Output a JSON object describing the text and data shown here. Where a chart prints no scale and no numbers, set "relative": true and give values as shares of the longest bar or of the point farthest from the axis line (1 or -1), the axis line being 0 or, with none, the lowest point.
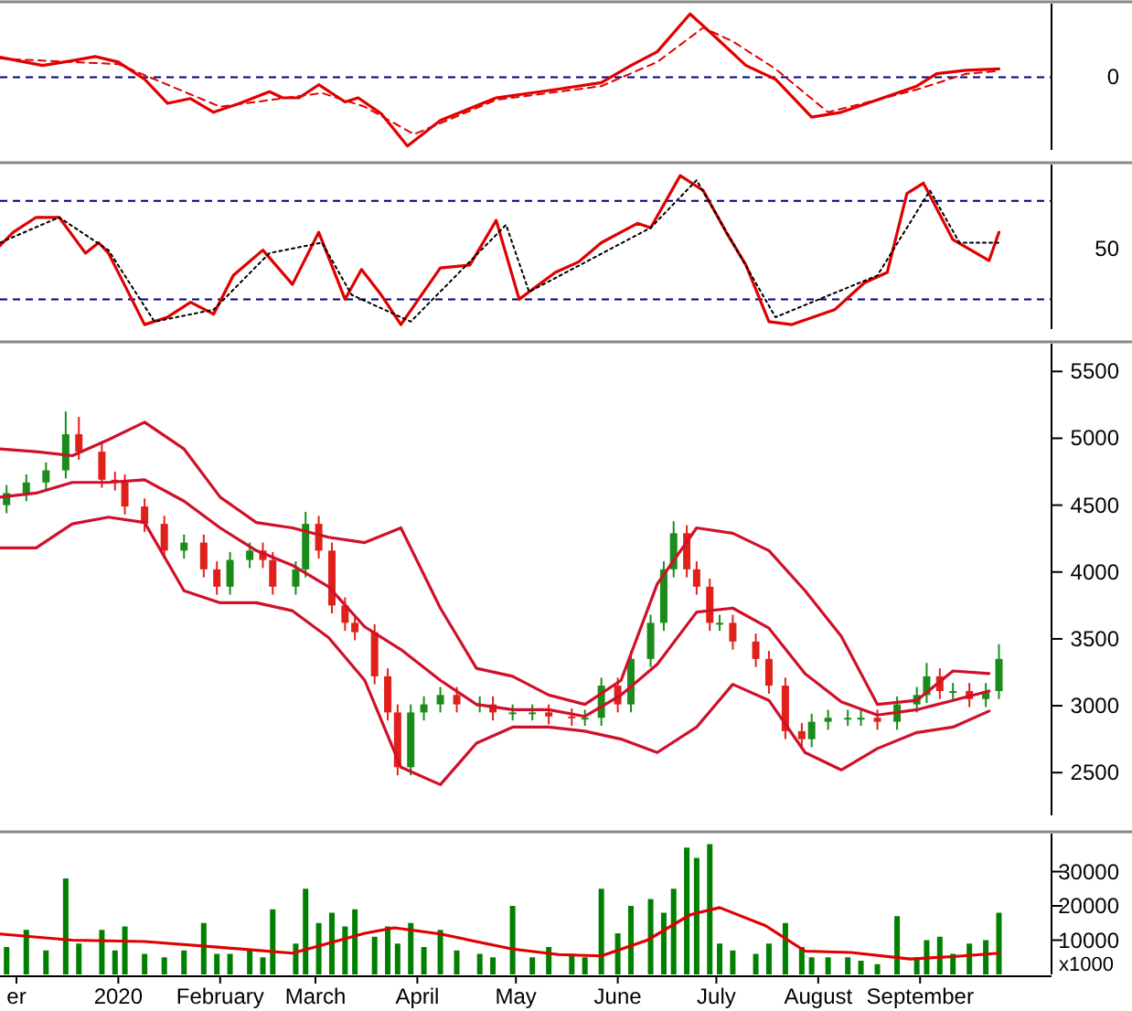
{
  "chart_data": [
    {
      "type": "line",
      "relative": true,
      "tick_labels": false,
      "xlim": [
        "2019-11-26",
        "2020-10-11"
      ],
      "ref_lines": [
        {
          "axis": "y",
          "value": 0,
          "label": "0",
          "color": "#000080",
          "line_style": "dashed"
        }
      ],
      "series": [
        {
          "color": "#e00000",
          "line_style": "solid",
          "x": [
            "2019-11-26",
            "2019-12-09",
            "2019-12-18",
            "2019-12-25",
            "2020-01-01",
            "2020-01-09",
            "2020-01-16",
            "2020-01-23",
            "2020-01-30",
            "2020-02-07",
            "2020-02-16",
            "2020-02-20",
            "2020-02-25",
            "2020-03-02",
            "2020-03-10",
            "2020-03-14",
            "2020-03-21",
            "2020-03-29",
            "2020-04-08",
            "2020-04-25",
            "2020-05-13",
            "2020-05-27",
            "2020-06-05",
            "2020-06-13",
            "2020-06-23",
            "2020-07-01",
            "2020-07-10",
            "2020-07-19",
            "2020-07-30",
            "2020-08-08",
            "2020-08-19",
            "2020-08-31",
            "2020-09-06",
            "2020-09-15",
            "2020-09-25"
          ],
          "values": [
            0.29,
            0.17,
            0.24,
            0.3,
            0.22,
            -0.03,
            -0.38,
            -0.31,
            -0.51,
            -0.38,
            -0.21,
            -0.3,
            -0.3,
            -0.11,
            -0.36,
            -0.3,
            -0.53,
            -1,
            -0.63,
            -0.3,
            -0.18,
            -0.08,
            0.17,
            0.37,
            0.92,
            0.57,
            0.17,
            -0.03,
            -0.58,
            -0.51,
            -0.33,
            -0.13,
            0.05,
            0.1,
            0.12
          ]
        },
        {
          "color": "#e00000",
          "line_style": "dashed",
          "x": [
            "2019-11-26",
            "2020-01-01",
            "2020-02-01",
            "2020-03-03",
            "2020-03-16",
            "2020-03-31",
            "2020-04-25",
            "2020-05-27",
            "2020-06-13",
            "2020-06-27",
            "2020-07-06",
            "2020-07-19",
            "2020-08-04",
            "2020-08-31",
            "2020-09-15",
            "2020-09-25"
          ],
          "values": [
            0.27,
            0.19,
            -0.43,
            -0.23,
            -0.43,
            -0.83,
            -0.33,
            -0.13,
            0.22,
            0.72,
            0.52,
            0.12,
            -0.51,
            -0.18,
            0.05,
            0.09
          ]
        }
      ]
    },
    {
      "type": "line",
      "relative": true,
      "tick_labels": false,
      "xlim": [
        "2019-11-26",
        "2020-10-11"
      ],
      "annotations": [
        "50"
      ],
      "ref_lines": [
        {
          "axis": "y",
          "value": 0.83,
          "label": null,
          "color": "#000080",
          "line_style": "dashed"
        },
        {
          "axis": "y",
          "value": 0.17,
          "label": null,
          "color": "#000080",
          "line_style": "dashed"
        }
      ],
      "series": [
        {
          "color": "#e00000",
          "line_style": "solid",
          "x": [
            "2019-11-26",
            "2019-11-30",
            "2019-12-07",
            "2019-12-14",
            "2019-12-22",
            "2019-12-26",
            "2019-12-29",
            "2020-01-09",
            "2020-01-16",
            "2020-01-23",
            "2020-01-30",
            "2020-02-05",
            "2020-02-14",
            "2020-02-23",
            "2020-03-02",
            "2020-03-10",
            "2020-03-15",
            "2020-03-21",
            "2020-03-27",
            "2020-04-08",
            "2020-04-17",
            "2020-04-25",
            "2020-05-02",
            "2020-05-13",
            "2020-05-20",
            "2020-05-27",
            "2020-06-07",
            "2020-06-11",
            "2020-06-20",
            "2020-06-27",
            "2020-07-04",
            "2020-07-10",
            "2020-07-17",
            "2020-07-24",
            "2020-08-06",
            "2020-08-15",
            "2020-08-22",
            "2020-08-28",
            "2020-09-02",
            "2020-09-11",
            "2020-09-22",
            "2020-09-25"
          ],
          "values": [
            0.53,
            0.62,
            0.72,
            0.72,
            0.48,
            0.55,
            0.48,
            0,
            0.05,
            0.15,
            0.07,
            0.33,
            0.5,
            0.27,
            0.62,
            0.17,
            0.37,
            0.2,
            0,
            0.38,
            0.4,
            0.7,
            0.17,
            0.35,
            0.42,
            0.55,
            0.68,
            0.65,
            1,
            0.9,
            0.62,
            0.4,
            0.02,
            0,
            0.1,
            0.28,
            0.35,
            0.88,
            0.95,
            0.57,
            0.43,
            0.62
          ]
        },
        {
          "color": "#000000",
          "line_style": "dotted",
          "x": [
            "2019-11-26",
            "2019-12-14",
            "2019-12-29",
            "2020-01-12",
            "2020-01-30",
            "2020-02-16",
            "2020-03-03",
            "2020-03-12",
            "2020-03-30",
            "2020-04-28",
            "2020-05-05",
            "2020-06-11",
            "2020-06-25",
            "2020-07-19",
            "2020-08-19",
            "2020-09-04",
            "2020-09-13",
            "2020-09-25"
          ],
          "values": [
            0.55,
            0.72,
            0.5,
            0.02,
            0.1,
            0.48,
            0.55,
            0.2,
            0.02,
            0.67,
            0.22,
            0.65,
            0.97,
            0.05,
            0.33,
            0.9,
            0.55,
            0.55
          ]
        }
      ]
    },
    {
      "type": "candlestick",
      "tick_labels": "y",
      "xlim": [
        "2019-11-26",
        "2020-10-11"
      ],
      "ylim": [
        2180,
        5680
      ],
      "yticks": [
        2500,
        3000,
        3500,
        4000,
        4500,
        5000,
        5500
      ],
      "series": [
        {
          "x": [
            "2019-11-28",
            "2019-12-04",
            "2019-12-10",
            "2019-12-16",
            "2019-12-20",
            "2019-12-27",
            "2019-12-31",
            "2020-01-03",
            "2020-01-09",
            "2020-01-15",
            "2020-01-21",
            "2020-01-27",
            "2020-01-31",
            "2020-02-04",
            "2020-02-10",
            "2020-02-14",
            "2020-02-17",
            "2020-02-24",
            "2020-02-27",
            "2020-03-02",
            "2020-03-06",
            "2020-03-10",
            "2020-03-13",
            "2020-03-19",
            "2020-03-23",
            "2020-03-26",
            "2020-03-30",
            "2020-04-03",
            "2020-04-08",
            "2020-04-13",
            "2020-04-20",
            "2020-04-24",
            "2020-04-30",
            "2020-05-06",
            "2020-05-11",
            "2020-05-18",
            "2020-05-22",
            "2020-05-27",
            "2020-06-01",
            "2020-06-05",
            "2020-06-11",
            "2020-06-15",
            "2020-06-18",
            "2020-06-22",
            "2020-06-25",
            "2020-06-29",
            "2020-07-02",
            "2020-07-06",
            "2020-07-13",
            "2020-07-17",
            "2020-07-22",
            "2020-07-27",
            "2020-07-30",
            "2020-08-04",
            "2020-08-10",
            "2020-08-14",
            "2020-08-19",
            "2020-08-25",
            "2020-08-31",
            "2020-09-03",
            "2020-09-07",
            "2020-09-11",
            "2020-09-16",
            "2020-09-21",
            "2020-09-25"
          ],
          "ohlc": [
            [
              4500,
              4650,
              4440,
              4590
            ],
            [
              4590,
              4730,
              4530,
              4670
            ],
            [
              4670,
              4820,
              4610,
              4760
            ],
            [
              4760,
              5200,
              4700,
              5030
            ],
            [
              5030,
              5160,
              4840,
              4900
            ],
            [
              4900,
              4960,
              4630,
              4690
            ],
            [
              4690,
              4750,
              4610,
              4670
            ],
            [
              4670,
              4730,
              4430,
              4490
            ],
            [
              4490,
              4550,
              4300,
              4360
            ],
            [
              4360,
              4420,
              4100,
              4160
            ],
            [
              4160,
              4280,
              4100,
              4220
            ],
            [
              4220,
              4280,
              3960,
              4020
            ],
            [
              4020,
              4080,
              3830,
              3890
            ],
            [
              3890,
              4150,
              3830,
              4090
            ],
            [
              4090,
              4220,
              4030,
              4160
            ],
            [
              4160,
              4220,
              4030,
              4090
            ],
            [
              4090,
              4150,
              3830,
              3890
            ],
            [
              3890,
              4080,
              3830,
              4020
            ],
            [
              4020,
              4450,
              3960,
              4360
            ],
            [
              4360,
              4420,
              4100,
              4160
            ],
            [
              4160,
              4220,
              3690,
              3750
            ],
            [
              3750,
              3810,
              3560,
              3620
            ],
            [
              3620,
              3680,
              3490,
              3550
            ],
            [
              3550,
              3610,
              3160,
              3220
            ],
            [
              3220,
              3280,
              2890,
              2950
            ],
            [
              2950,
              3010,
              2480,
              2540
            ],
            [
              2540,
              3010,
              2480,
              2950
            ],
            [
              2950,
              3070,
              2890,
              3010
            ],
            [
              3010,
              3140,
              2950,
              3080
            ],
            [
              3080,
              3140,
              2950,
              3010
            ],
            [
              3010,
              3070,
              2950,
              3010
            ],
            [
              3010,
              3070,
              2890,
              2950
            ],
            [
              2950,
              3010,
              2890,
              2950
            ],
            [
              2950,
              3010,
              2890,
              2950
            ],
            [
              2950,
              3010,
              2860,
              2920
            ],
            [
              2920,
              2980,
              2850,
              2910
            ],
            [
              2910,
              2970,
              2850,
              2910
            ],
            [
              2910,
              3210,
              2850,
              3150
            ],
            [
              3150,
              3210,
              2950,
              3010
            ],
            [
              3010,
              3410,
              2950,
              3350
            ],
            [
              3350,
              3680,
              3290,
              3620
            ],
            [
              3620,
              4080,
              3560,
              4020
            ],
            [
              4020,
              4380,
              3960,
              4290
            ],
            [
              4290,
              4350,
              3960,
              4020
            ],
            [
              4020,
              4080,
              3830,
              3890
            ],
            [
              3890,
              3950,
              3560,
              3620
            ],
            [
              3620,
              3680,
              3560,
              3620
            ],
            [
              3620,
              3680,
              3420,
              3480
            ],
            [
              3480,
              3540,
              3290,
              3350
            ],
            [
              3350,
              3410,
              3090,
              3150
            ],
            [
              3150,
              3210,
              2750,
              2810
            ],
            [
              2810,
              2870,
              2690,
              2750
            ],
            [
              2750,
              2940,
              2690,
              2880
            ],
            [
              2880,
              2970,
              2820,
              2910
            ],
            [
              2910,
              2970,
              2850,
              2910
            ],
            [
              2910,
              2970,
              2850,
              2910
            ],
            [
              2910,
              2970,
              2820,
              2880
            ],
            [
              2880,
              3070,
              2820,
              3010
            ],
            [
              3010,
              3140,
              2950,
              3080
            ],
            [
              3080,
              3320,
              3020,
              3220
            ],
            [
              3220,
              3280,
              3050,
              3110
            ],
            [
              3110,
              3170,
              3050,
              3110
            ],
            [
              3110,
              3170,
              2990,
              3050
            ],
            [
              3050,
              3170,
              2990,
              3110
            ],
            [
              3110,
              3460,
              3050,
              3350
            ]
          ],
          "colors": [
            "#1a8c1a",
            "#1a8c1a",
            "#1a8c1a",
            "#1a8c1a",
            "#e0201a",
            "#e0201a",
            "#e0201a",
            "#e0201a",
            "#e0201a",
            "#e0201a",
            "#1a8c1a",
            "#e0201a",
            "#e0201a",
            "#1a8c1a",
            "#1a8c1a",
            "#e0201a",
            "#e0201a",
            "#1a8c1a",
            "#1a8c1a",
            "#e0201a",
            "#e0201a",
            "#e0201a",
            "#e0201a",
            "#e0201a",
            "#e0201a",
            "#e0201a",
            "#1a8c1a",
            "#1a8c1a",
            "#1a8c1a",
            "#e0201a",
            "#1a8c1a",
            "#e0201a",
            "#1a8c1a",
            "#1a8c1a",
            "#e0201a",
            "#e0201a",
            "#1a8c1a",
            "#1a8c1a",
            "#e0201a",
            "#1a8c1a",
            "#1a8c1a",
            "#1a8c1a",
            "#1a8c1a",
            "#e0201a",
            "#e0201a",
            "#e0201a",
            "#1a8c1a",
            "#e0201a",
            "#e0201a",
            "#e0201a",
            "#e0201a",
            "#e0201a",
            "#1a8c1a",
            "#1a8c1a",
            "#1a8c1a",
            "#1a8c1a",
            "#e0201a",
            "#1a8c1a",
            "#1a8c1a",
            "#1a8c1a",
            "#e0201a",
            "#1a8c1a",
            "#e0201a",
            "#1a8c1a",
            "#1a8c1a"
          ]
        },
        {
          "type": "line",
          "color": "#d0102a",
          "line_style": "solid",
          "x": [
            "2019-11-26",
            "2019-12-07",
            "2019-12-18",
            "2019-12-29",
            "2020-01-09",
            "2020-01-21",
            "2020-02-01",
            "2020-02-12",
            "2020-02-23",
            "2020-03-05",
            "2020-03-16",
            "2020-03-27",
            "2020-04-08",
            "2020-04-19",
            "2020-04-30",
            "2020-05-11",
            "2020-05-22",
            "2020-06-02",
            "2020-06-13",
            "2020-06-25",
            "2020-07-06",
            "2020-07-17",
            "2020-07-28",
            "2020-08-08",
            "2020-08-19",
            "2020-08-31",
            "2020-09-11",
            "2020-09-22"
          ],
          "values": [
            4920,
            4900,
            4870,
            4990,
            5120,
            4920,
            4560,
            4370,
            4330,
            4260,
            4220,
            4330,
            3730,
            3280,
            3220,
            3080,
            3010,
            3190,
            3910,
            4330,
            4290,
            4160,
            3860,
            3520,
            3010,
            3040,
            3260,
            3240
          ]
        },
        {
          "type": "line",
          "color": "#d0102a",
          "line_style": "solid",
          "x": [
            "2019-11-26",
            "2019-12-07",
            "2019-12-18",
            "2019-12-29",
            "2020-01-09",
            "2020-01-21",
            "2020-02-01",
            "2020-02-12",
            "2020-02-23",
            "2020-03-05",
            "2020-03-16",
            "2020-03-27",
            "2020-04-08",
            "2020-04-19",
            "2020-04-30",
            "2020-05-11",
            "2020-05-22",
            "2020-06-02",
            "2020-06-13",
            "2020-06-25",
            "2020-07-06",
            "2020-07-17",
            "2020-07-28",
            "2020-08-08",
            "2020-08-19",
            "2020-08-31",
            "2020-09-11",
            "2020-09-22"
          ],
          "values": [
            4560,
            4590,
            4670,
            4670,
            4690,
            4530,
            4330,
            4160,
            4050,
            3890,
            3590,
            3420,
            3190,
            3010,
            2970,
            2970,
            2920,
            3080,
            3310,
            3700,
            3730,
            3580,
            3240,
            3030,
            2930,
            2970,
            3040,
            3110
          ]
        },
        {
          "type": "line",
          "color": "#d0102a",
          "line_style": "solid",
          "x": [
            "2019-11-26",
            "2019-12-07",
            "2019-12-18",
            "2019-12-29",
            "2020-01-09",
            "2020-01-21",
            "2020-02-01",
            "2020-02-12",
            "2020-02-23",
            "2020-03-05",
            "2020-03-16",
            "2020-03-27",
            "2020-04-08",
            "2020-04-19",
            "2020-04-30",
            "2020-05-11",
            "2020-05-22",
            "2020-06-02",
            "2020-06-13",
            "2020-06-25",
            "2020-07-06",
            "2020-07-17",
            "2020-07-28",
            "2020-08-08",
            "2020-08-19",
            "2020-08-31",
            "2020-09-11",
            "2020-09-22"
          ],
          "values": [
            4180,
            4180,
            4360,
            4410,
            4370,
            3860,
            3770,
            3770,
            3710,
            3510,
            3190,
            2540,
            2410,
            2720,
            2840,
            2840,
            2810,
            2750,
            2650,
            2840,
            3160,
            3040,
            2650,
            2520,
            2680,
            2800,
            2840,
            2960
          ]
        }
      ]
    },
    {
      "type": "bar",
      "xlim": [
        "2019-11-26",
        "2020-10-11"
      ],
      "ylim": [
        0,
        40000
      ],
      "yticks": [
        10000,
        20000,
        30000
      ],
      "xticks": [
        {
          "value": "2019-12-01",
          "label": "er"
        },
        {
          "value": "2020-01-01",
          "label": "2020"
        },
        {
          "value": "2020-02-01",
          "label": "February"
        },
        {
          "value": "2020-03-01",
          "label": "March"
        },
        {
          "value": "2020-04-01",
          "label": "April"
        },
        {
          "value": "2020-05-01",
          "label": "May"
        },
        {
          "value": "2020-06-01",
          "label": "June"
        },
        {
          "value": "2020-07-01",
          "label": "July"
        },
        {
          "value": "2020-08-01",
          "label": "August"
        },
        {
          "value": "2020-09-01",
          "label": "September"
        }
      ],
      "annotations": [
        "x1000"
      ],
      "series": [
        {
          "color": "#008000",
          "x": [
            "2019-11-28",
            "2019-12-04",
            "2019-12-10",
            "2019-12-16",
            "2019-12-20",
            "2019-12-27",
            "2019-12-31",
            "2020-01-03",
            "2020-01-09",
            "2020-01-15",
            "2020-01-21",
            "2020-01-27",
            "2020-01-31",
            "2020-02-04",
            "2020-02-10",
            "2020-02-14",
            "2020-02-17",
            "2020-02-24",
            "2020-02-27",
            "2020-03-02",
            "2020-03-06",
            "2020-03-10",
            "2020-03-13",
            "2020-03-19",
            "2020-03-23",
            "2020-03-26",
            "2020-03-30",
            "2020-04-03",
            "2020-04-08",
            "2020-04-13",
            "2020-04-20",
            "2020-04-24",
            "2020-04-30",
            "2020-05-06",
            "2020-05-11",
            "2020-05-18",
            "2020-05-22",
            "2020-05-27",
            "2020-06-01",
            "2020-06-05",
            "2020-06-11",
            "2020-06-15",
            "2020-06-18",
            "2020-06-22",
            "2020-06-25",
            "2020-06-29",
            "2020-07-02",
            "2020-07-06",
            "2020-07-13",
            "2020-07-17",
            "2020-07-22",
            "2020-07-27",
            "2020-07-30",
            "2020-08-04",
            "2020-08-10",
            "2020-08-14",
            "2020-08-19",
            "2020-08-25",
            "2020-08-31",
            "2020-09-03",
            "2020-09-07",
            "2020-09-11",
            "2020-09-16",
            "2020-09-21",
            "2020-09-25"
          ],
          "values": [
            8000,
            13000,
            7000,
            28000,
            9000,
            13000,
            7000,
            14000,
            6000,
            5000,
            7000,
            15000,
            6000,
            6000,
            7000,
            5000,
            19000,
            9000,
            25000,
            15000,
            18000,
            14000,
            19000,
            11000,
            14000,
            9000,
            15000,
            8000,
            13000,
            7000,
            6000,
            5000,
            20000,
            5000,
            8000,
            6000,
            5000,
            25000,
            12000,
            20000,
            22000,
            18000,
            25000,
            37000,
            34000,
            38000,
            9000,
            7000,
            6000,
            9000,
            15000,
            8000,
            5000,
            5000,
            5000,
            4000,
            3000,
            17000,
            5000,
            10000,
            11000,
            6000,
            9000,
            10000,
            18000
          ]
        },
        {
          "type": "line",
          "color": "#e00000",
          "line_style": "solid",
          "x": [
            "2019-11-26",
            "2019-12-18",
            "2020-01-09",
            "2020-02-01",
            "2020-02-23",
            "2020-03-16",
            "2020-03-25",
            "2020-04-08",
            "2020-04-30",
            "2020-05-14",
            "2020-05-27",
            "2020-06-10",
            "2020-06-23",
            "2020-07-02",
            "2020-07-16",
            "2020-07-28",
            "2020-08-11",
            "2020-08-29",
            "2020-09-11",
            "2020-09-25"
          ],
          "values": [
            11800,
            10000,
            9600,
            7900,
            6200,
            12000,
            13600,
            11800,
            7400,
            5800,
            5400,
            10000,
            17400,
            19500,
            14200,
            6800,
            6400,
            4500,
            5200,
            6200
          ]
        }
      ]
    }
  ]
}
